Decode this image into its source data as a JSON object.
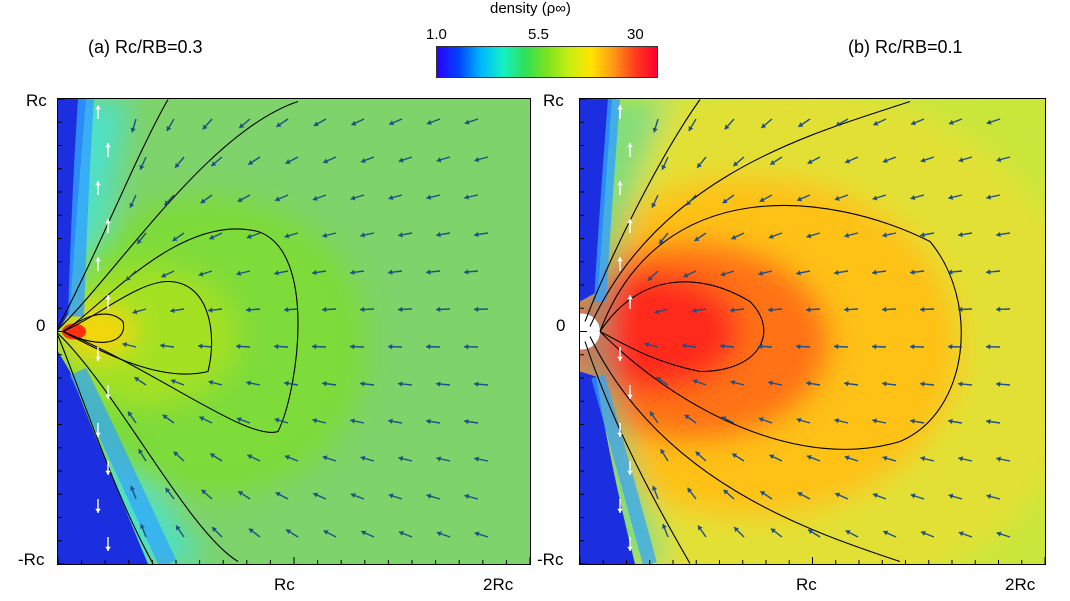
{
  "colorbar": {
    "title": "density (ρ∞)",
    "ticks": [
      "1.0",
      "5.5",
      "30"
    ],
    "colors": [
      "#2a00ff",
      "#0044ff",
      "#00b7ff",
      "#13f1c5",
      "#2fe05a",
      "#7be21f",
      "#c7ee12",
      "#ffe400",
      "#ff9a17",
      "#ff3c1d",
      "#ff0030"
    ]
  },
  "axes": {
    "y_ticks": [
      "Rc",
      "0",
      "-Rc"
    ],
    "x_ticks": [
      "Rc",
      "2Rc"
    ]
  },
  "chart_data": [
    {
      "type": "heatmap",
      "title": "(a) Rc/RB=0.3",
      "x_range": [
        "0",
        "2Rc"
      ],
      "y_range": [
        "-Rc",
        "Rc"
      ],
      "colorbar_range": [
        1.0,
        30
      ],
      "colors": {
        "background": "#7ed36a",
        "wake": "#2f5dd6",
        "peak": "#ff2a1a",
        "arrow": "#1f4f85"
      }
    },
    {
      "type": "heatmap",
      "title": "(b) Rc/RB=0.1",
      "x_range": [
        "0",
        "2Rc"
      ],
      "y_range": [
        "-Rc",
        "Rc"
      ],
      "colorbar_range": [
        1.0,
        30
      ],
      "colors": {
        "background": "#c9e63b",
        "wake": "#1d2be0",
        "peak": "#ff1f12",
        "arrow": "#1f4f85"
      }
    }
  ]
}
